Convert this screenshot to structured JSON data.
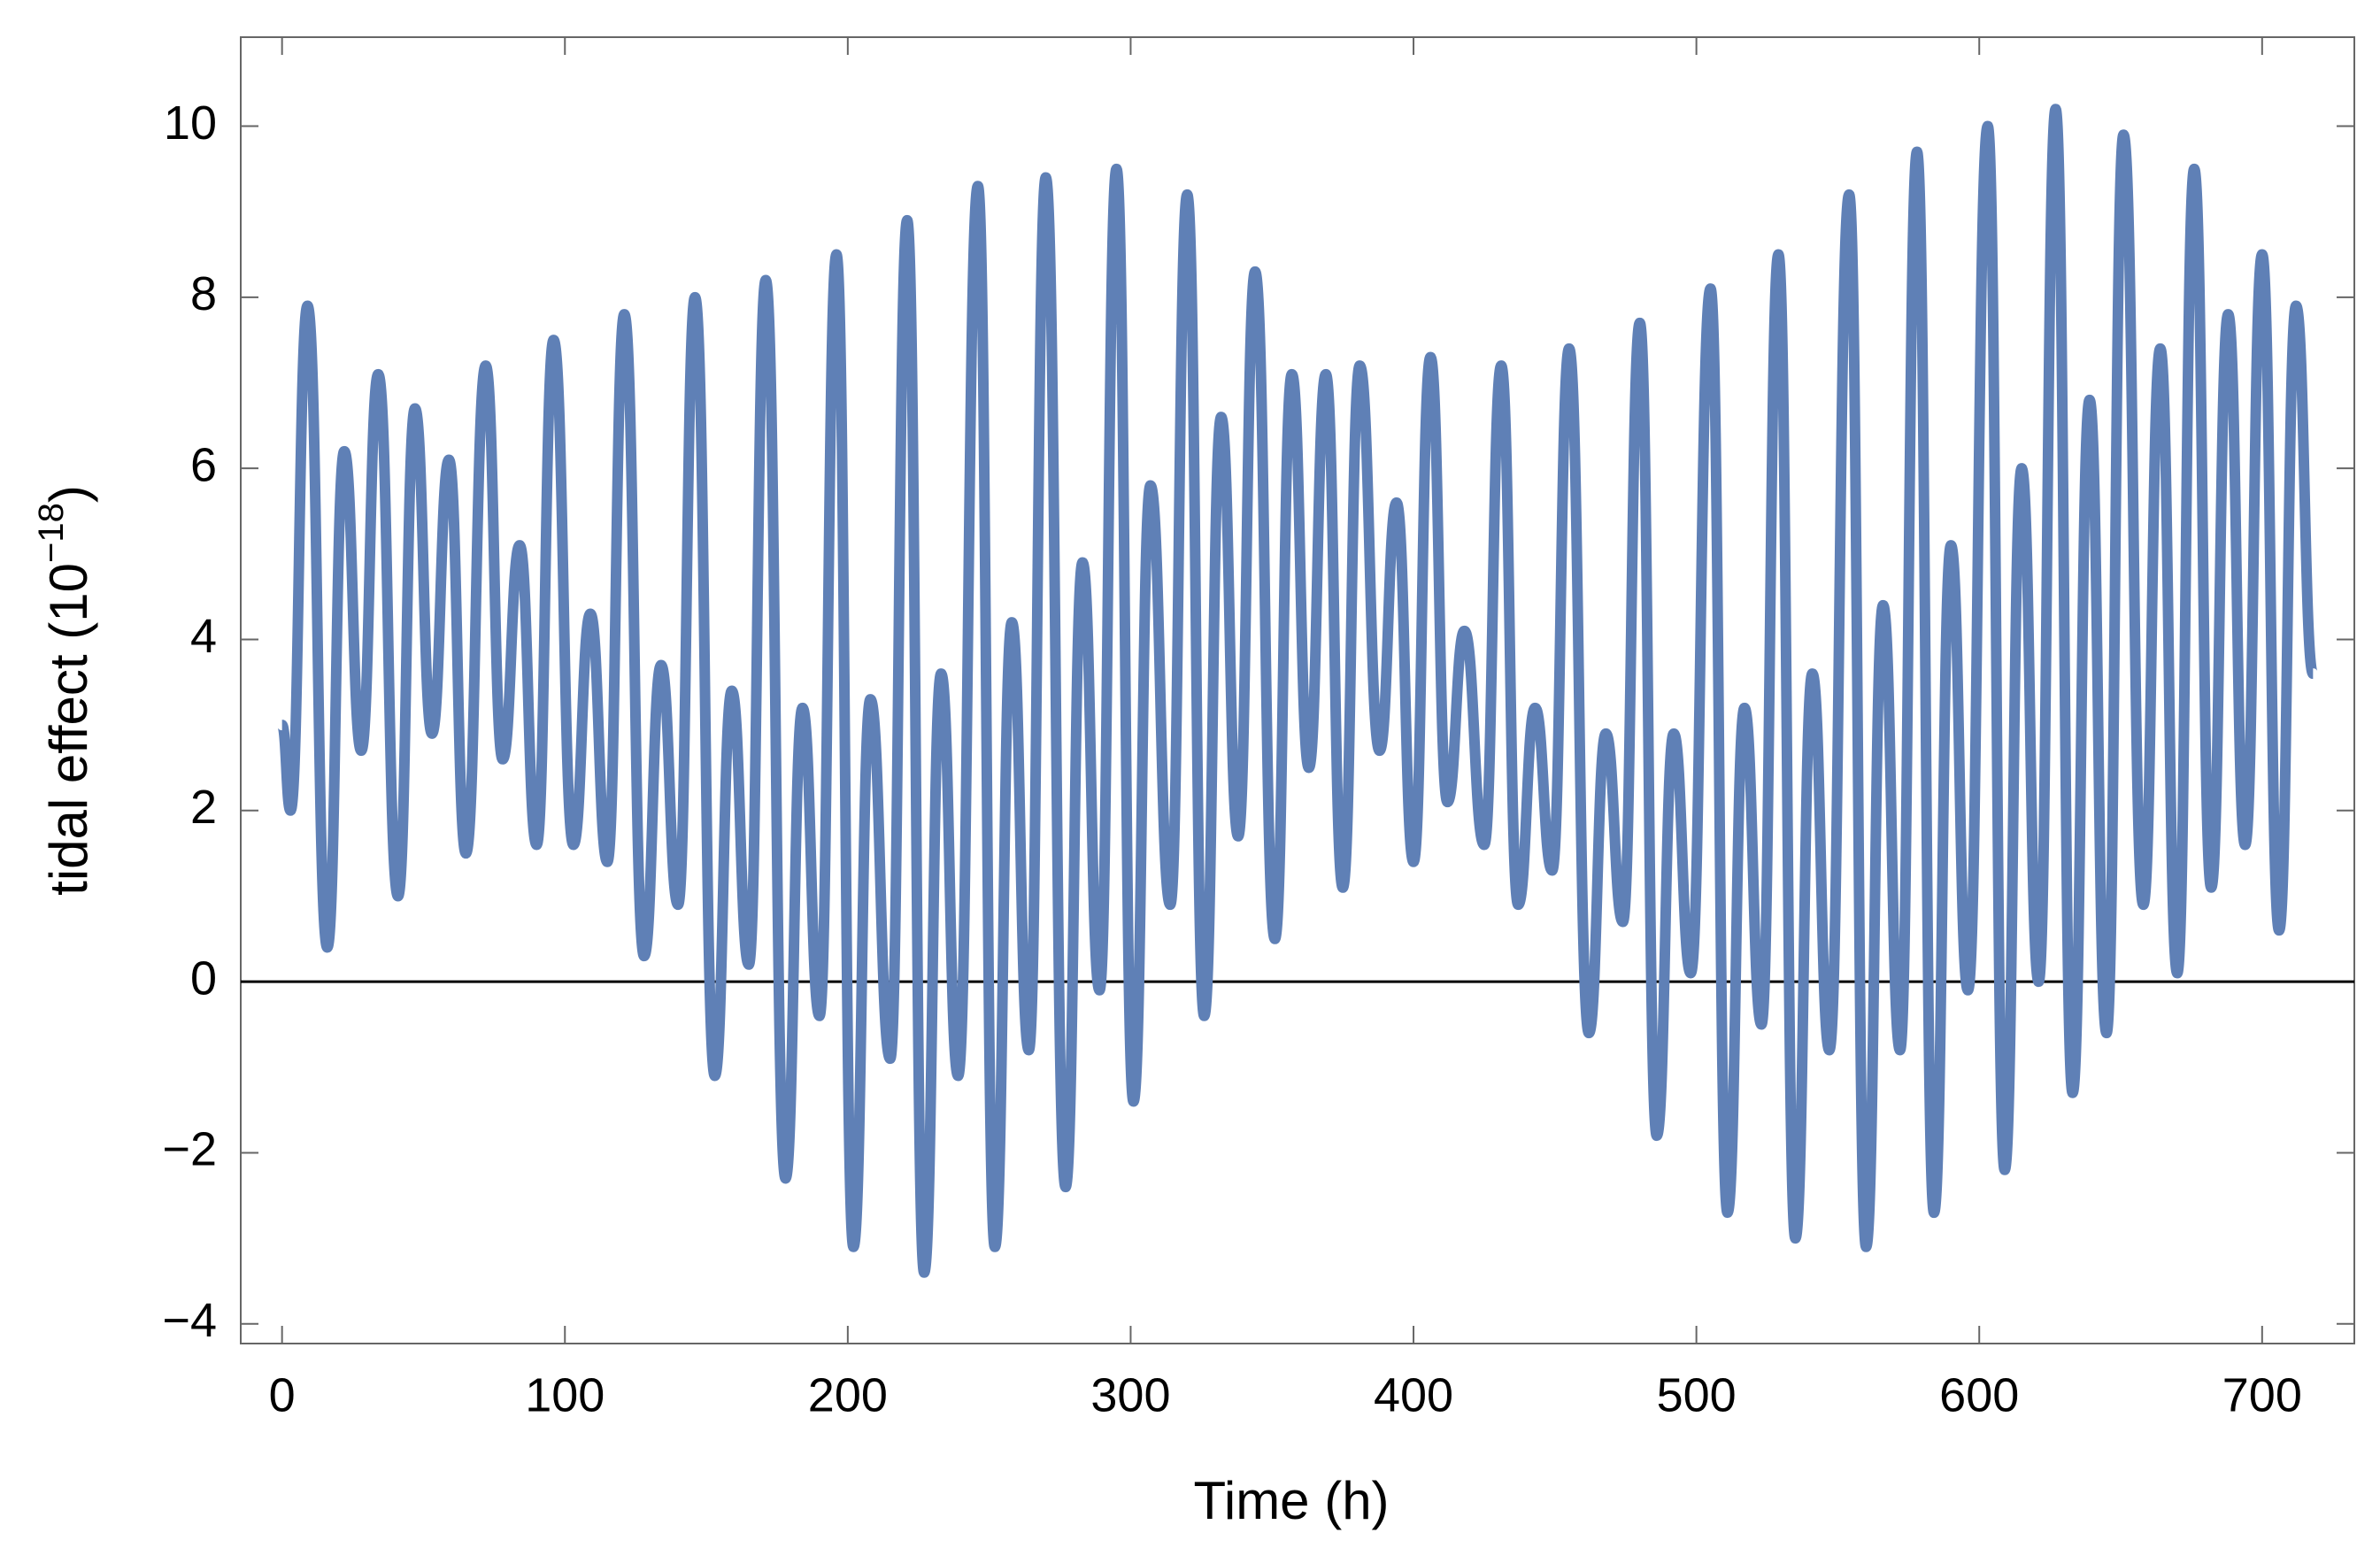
{
  "chart_data": {
    "type": "line",
    "xlabel": "Time (h)",
    "ylabel": {
      "text": "tidal effect (10",
      "exponent": "−18",
      "suffix": ")"
    },
    "x": [
      0,
      3,
      9,
      16,
      22,
      28,
      34,
      41,
      47,
      53,
      59,
      65,
      72,
      78,
      84,
      90,
      96,
      103,
      109,
      115,
      121,
      128,
      134,
      140,
      146,
      153,
      159,
      165,
      171,
      178,
      184,
      190,
      196,
      202,
      208,
      215,
      221,
      227,
      233,
      239,
      246,
      252,
      258,
      264,
      270,
      277,
      283,
      289,
      295,
      301,
      307,
      314,
      320,
      326,
      332,
      338,
      344,
      351,
      357,
      363,
      369,
      375,
      381,
      388,
      394,
      400,
      406,
      412,
      418,
      425,
      431,
      437,
      443,
      449,
      455,
      462,
      468,
      474,
      480,
      486,
      492,
      498,
      505,
      511,
      517,
      523,
      529,
      535,
      541,
      547,
      554,
      560,
      566,
      572,
      578,
      584,
      590,
      596,
      603,
      609,
      615,
      621,
      627,
      633,
      639,
      645,
      651,
      658,
      664,
      670,
      676,
      682,
      688,
      694,
      700,
      706,
      712,
      718
    ],
    "series": [
      {
        "name": "tidal effect",
        "color": "#5f80b6",
        "values": [
          3.0,
          2.0,
          7.9,
          0.4,
          6.2,
          2.7,
          7.1,
          1.0,
          6.7,
          2.9,
          6.1,
          1.5,
          7.2,
          2.6,
          5.1,
          1.6,
          7.5,
          1.6,
          4.3,
          1.4,
          7.8,
          0.3,
          3.7,
          0.9,
          8.0,
          -1.1,
          3.4,
          0.2,
          8.2,
          -2.3,
          3.2,
          -0.4,
          8.5,
          -3.1,
          3.3,
          -0.9,
          8.9,
          -3.4,
          3.6,
          -1.1,
          9.3,
          -3.1,
          4.2,
          -0.8,
          9.4,
          -2.4,
          4.9,
          -0.1,
          9.5,
          -1.4,
          5.8,
          0.9,
          9.2,
          -0.4,
          6.6,
          1.7,
          8.3,
          0.5,
          7.1,
          2.5,
          7.1,
          1.1,
          7.2,
          2.7,
          5.6,
          1.4,
          7.3,
          2.1,
          4.1,
          1.6,
          7.2,
          0.9,
          3.2,
          1.3,
          7.4,
          -0.6,
          2.9,
          0.7,
          7.7,
          -1.8,
          2.9,
          0.1,
          8.1,
          -2.7,
          3.2,
          -0.5,
          8.5,
          -3.0,
          3.6,
          -0.8,
          9.2,
          -3.1,
          4.4,
          -0.8,
          9.7,
          -2.7,
          5.1,
          -0.1,
          10.0,
          -2.2,
          6.0,
          0.0,
          10.2,
          -1.3,
          6.8,
          -0.6,
          9.9,
          0.9,
          7.4,
          0.1,
          9.5,
          1.1,
          7.8,
          1.6,
          8.5,
          0.6,
          7.9,
          3.6
        ]
      }
    ],
    "xlim": [
      -14.6,
      732.6
    ],
    "ylim": [
      -4.23,
      11.04
    ],
    "xticks": [
      0,
      100,
      200,
      300,
      400,
      500,
      600,
      700
    ],
    "yticks": [
      {
        "value": -4,
        "label": "−4"
      },
      {
        "value": -2,
        "label": "−2"
      },
      0,
      2,
      4,
      6,
      8,
      10
    ]
  }
}
